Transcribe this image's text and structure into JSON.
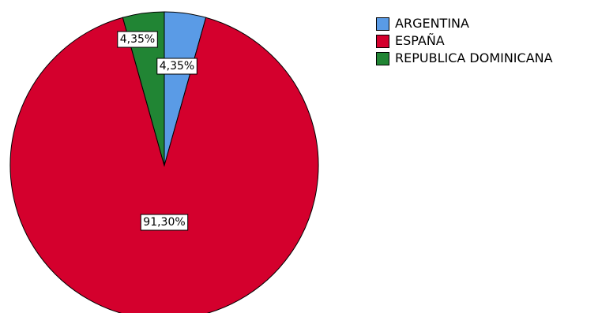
{
  "chart_data": {
    "type": "pie",
    "categories": [
      "ARGENTINA",
      "ESPAÑA",
      "REPUBLICA DOMINICANA"
    ],
    "values": [
      4.35,
      91.3,
      4.35
    ],
    "data_labels": [
      "4,35%",
      "91,30%",
      "4,35%"
    ],
    "colors": [
      "#5a9be6",
      "#d4002d",
      "#218534"
    ],
    "start_angle_deg": 0,
    "direction": "clockwise",
    "legend_position": "top-right"
  },
  "heading_fragment": ""
}
